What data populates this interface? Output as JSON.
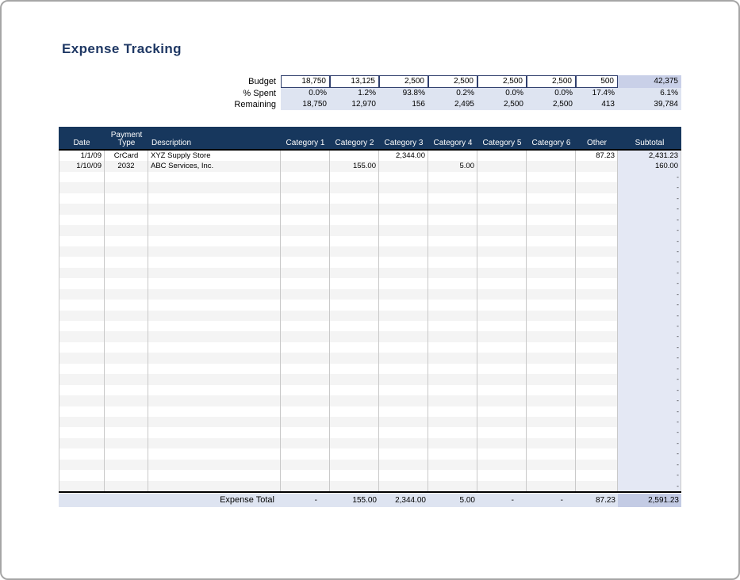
{
  "title": "Expense Tracking",
  "summary": {
    "rows": [
      {
        "label": "Budget",
        "values": [
          "18,750",
          "13,125",
          "2,500",
          "2,500",
          "2,500",
          "2,500",
          "500"
        ],
        "total": "42,375"
      },
      {
        "label": "% Spent",
        "values": [
          "0.0%",
          "1.2%",
          "93.8%",
          "0.2%",
          "0.0%",
          "0.0%",
          "17.4%"
        ],
        "total": "6.1%"
      },
      {
        "label": "Remaining",
        "values": [
          "18,750",
          "12,970",
          "156",
          "2,495",
          "2,500",
          "2,500",
          "413"
        ],
        "total": "39,784"
      }
    ]
  },
  "table": {
    "headers": [
      "Date",
      "Payment Type",
      "Description",
      "Category 1",
      "Category 2",
      "Category 3",
      "Category 4",
      "Category 5",
      "Category 6",
      "Other",
      "Subtotal"
    ],
    "rows": [
      {
        "date": "1/1/09",
        "payment_type": "CrCard",
        "description": "XYZ Supply Store",
        "categories": [
          "",
          "",
          "2,344.00",
          "",
          "",
          ""
        ],
        "other": "87.23",
        "subtotal": "2,431.23"
      },
      {
        "date": "1/10/09",
        "payment_type": "2032",
        "description": "ABC Services, Inc.",
        "categories": [
          "",
          "155.00",
          "",
          "5.00",
          "",
          ""
        ],
        "other": "",
        "subtotal": "160.00"
      }
    ],
    "empty_row_count": 30,
    "empty_subtotal_placeholder": "-",
    "total": {
      "label": "Expense Total",
      "categories": [
        "-",
        "155.00",
        "2,344.00",
        "5.00",
        "-",
        "-"
      ],
      "other": "87.23",
      "subtotal": "2,591.23"
    }
  },
  "colors": {
    "title": "#1F3864",
    "header_bg": "#17375D",
    "summary_fill": "#DEE4F1",
    "summary_total_fill": "#C9D0E8",
    "subtotal_col_fill": "#E4E8F4",
    "total_row_fill": "#DEE4F1",
    "total_subtotal_fill": "#C3CBE4",
    "stripe": "#F4F4F4",
    "gridline": "#C9C9C9",
    "box_border": "#31406E"
  }
}
